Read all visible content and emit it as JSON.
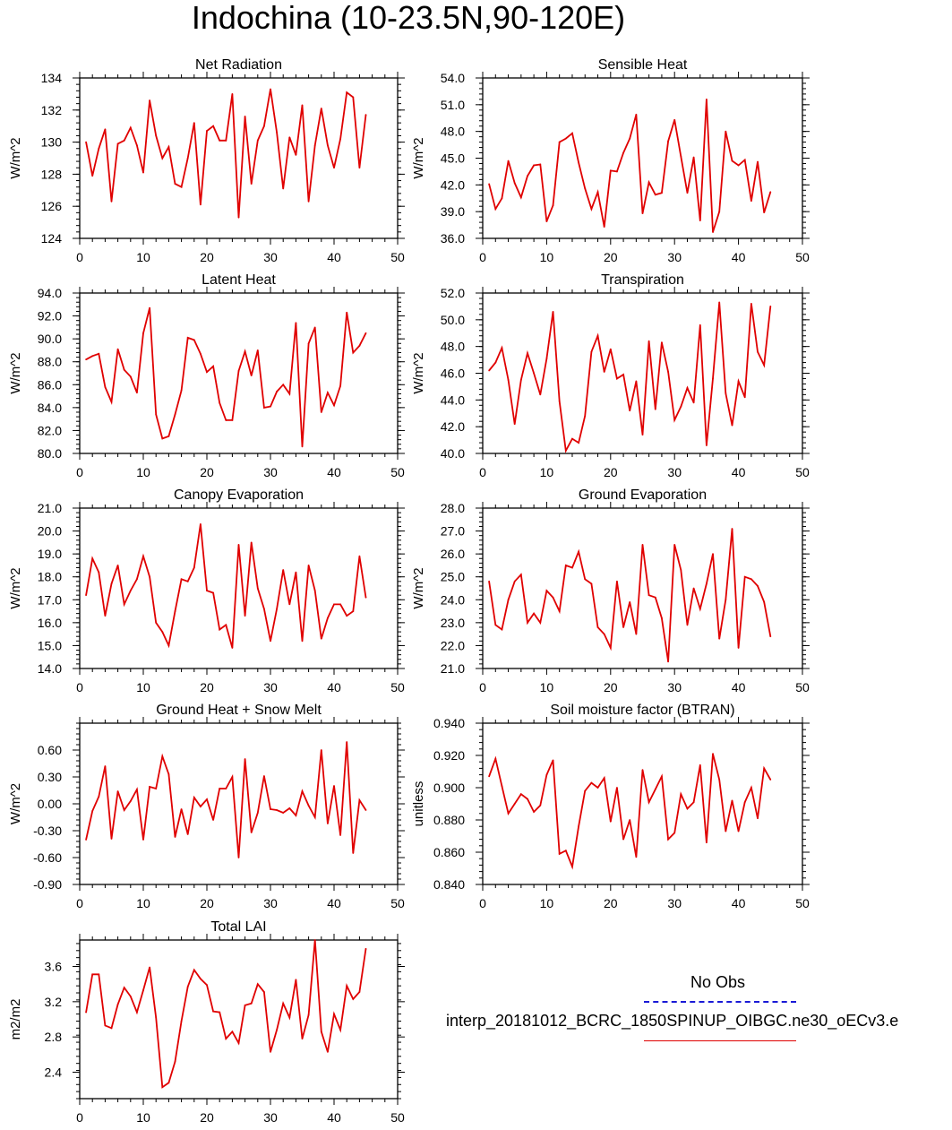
{
  "title": "Indochina (10-23.5N,90-120E)",
  "legend": {
    "obs_label": "No Obs",
    "model_label": "interp_20181012_BCRC_1850SPINUP_OIBGC.ne30_oECv3.e",
    "obs_color": "#1a1ad6",
    "model_color": "#e00000"
  },
  "chart_data": [
    {
      "type": "line",
      "title": "Net Radiation",
      "ylabel": "W/m^2",
      "xlim": [
        0,
        50
      ],
      "ylim": [
        124,
        134
      ],
      "xticks": [
        0,
        10,
        20,
        30,
        40,
        50
      ],
      "yticks": [
        "124",
        "126",
        "128",
        "130",
        "132",
        "134"
      ],
      "x": [
        1,
        2,
        3,
        4,
        5,
        6,
        7,
        8,
        9,
        10,
        11,
        12,
        13,
        14,
        15,
        16,
        17,
        18,
        19,
        20,
        21,
        22,
        23,
        24,
        25,
        26,
        27,
        28,
        29,
        30,
        31,
        32,
        33,
        34,
        35,
        36,
        37,
        38,
        39,
        40,
        41,
        42,
        43,
        44,
        45
      ],
      "series": [
        {
          "color": "#e00000",
          "values": [
            130.0,
            127.9,
            129.6,
            130.8,
            126.3,
            129.9,
            130.1,
            130.9,
            129.8,
            128.1,
            132.6,
            130.4,
            129.0,
            129.7,
            127.4,
            127.2,
            129.0,
            131.2,
            126.1,
            130.7,
            131.0,
            130.1,
            130.1,
            133.0,
            125.3,
            131.6,
            127.4,
            130.1,
            131.0,
            133.3,
            130.6,
            127.1,
            130.3,
            129.2,
            132.3,
            126.3,
            129.8,
            132.1,
            129.8,
            128.4,
            130.2,
            133.1,
            132.8,
            128.4,
            131.7
          ]
        }
      ]
    },
    {
      "type": "line",
      "title": "Sensible Heat",
      "ylabel": "W/m^2",
      "xlim": [
        0,
        50
      ],
      "ylim": [
        36,
        54
      ],
      "xticks": [
        0,
        10,
        20,
        30,
        40,
        50
      ],
      "yticks": [
        "36.0",
        "39.0",
        "42.0",
        "45.0",
        "48.0",
        "51.0",
        "54.0"
      ],
      "x": [
        1,
        2,
        3,
        4,
        5,
        6,
        7,
        8,
        9,
        10,
        11,
        12,
        13,
        14,
        15,
        16,
        17,
        18,
        19,
        20,
        21,
        22,
        23,
        24,
        25,
        26,
        27,
        28,
        29,
        30,
        31,
        32,
        33,
        34,
        35,
        36,
        37,
        38,
        39,
        40,
        41,
        42,
        43,
        44,
        45
      ],
      "series": [
        {
          "color": "#e00000",
          "values": [
            42.1,
            39.3,
            40.5,
            44.7,
            42.2,
            40.6,
            43.0,
            44.2,
            44.3,
            37.9,
            39.7,
            46.8,
            47.2,
            47.8,
            44.5,
            41.6,
            39.3,
            41.2,
            37.3,
            43.6,
            43.5,
            45.6,
            47.2,
            49.9,
            38.8,
            42.3,
            40.9,
            41.1,
            46.9,
            49.3,
            45.2,
            41.1,
            45.1,
            38.0,
            51.6,
            36.7,
            39.0,
            48.0,
            44.7,
            44.2,
            44.8,
            40.2,
            44.6,
            38.9,
            41.2
          ]
        }
      ]
    },
    {
      "type": "line",
      "title": "Latent Heat",
      "ylabel": "W/m^2",
      "xlim": [
        0,
        50
      ],
      "ylim": [
        80,
        94
      ],
      "xticks": [
        0,
        10,
        20,
        30,
        40,
        50
      ],
      "yticks": [
        "80.0",
        "82.0",
        "84.0",
        "86.0",
        "88.0",
        "90.0",
        "92.0",
        "94.0"
      ],
      "x": [
        1,
        2,
        3,
        4,
        5,
        6,
        7,
        8,
        9,
        10,
        11,
        12,
        13,
        14,
        15,
        16,
        17,
        18,
        19,
        20,
        21,
        22,
        23,
        24,
        25,
        26,
        27,
        28,
        29,
        30,
        31,
        32,
        33,
        34,
        35,
        36,
        37,
        38,
        39,
        40,
        41,
        42,
        43,
        44,
        45
      ],
      "series": [
        {
          "color": "#e00000",
          "values": [
            88.2,
            88.5,
            88.7,
            85.8,
            84.5,
            89.1,
            87.3,
            86.7,
            85.3,
            90.5,
            92.7,
            83.4,
            81.3,
            81.5,
            83.4,
            85.5,
            90.1,
            89.9,
            88.7,
            87.1,
            87.6,
            84.4,
            82.9,
            82.9,
            87.2,
            88.9,
            86.8,
            89.0,
            84.0,
            84.1,
            85.4,
            86.0,
            85.2,
            91.4,
            80.6,
            89.6,
            91.0,
            83.6,
            85.3,
            84.2,
            85.9,
            92.3,
            88.8,
            89.4,
            90.5
          ]
        }
      ]
    },
    {
      "type": "line",
      "title": "Transpiration",
      "ylabel": "W/m^2",
      "xlim": [
        0,
        50
      ],
      "ylim": [
        40,
        52
      ],
      "xticks": [
        0,
        10,
        20,
        30,
        40,
        50
      ],
      "yticks": [
        "40.0",
        "42.0",
        "44.0",
        "46.0",
        "48.0",
        "50.0",
        "52.0"
      ],
      "x": [
        1,
        2,
        3,
        4,
        5,
        6,
        7,
        8,
        9,
        10,
        11,
        12,
        13,
        14,
        15,
        16,
        17,
        18,
        19,
        20,
        21,
        22,
        23,
        24,
        25,
        26,
        27,
        28,
        29,
        30,
        31,
        32,
        33,
        34,
        35,
        36,
        37,
        38,
        39,
        40,
        41,
        42,
        43,
        44,
        45
      ],
      "series": [
        {
          "color": "#e00000",
          "values": [
            46.2,
            46.8,
            47.9,
            45.5,
            42.2,
            45.5,
            47.5,
            46.0,
            44.4,
            47.1,
            50.6,
            43.9,
            40.2,
            41.1,
            40.8,
            42.8,
            47.6,
            48.8,
            46.1,
            47.8,
            45.6,
            45.9,
            43.2,
            45.4,
            41.4,
            48.4,
            43.3,
            48.3,
            46.1,
            42.5,
            43.5,
            44.9,
            43.8,
            49.6,
            40.6,
            45.6,
            51.3,
            44.5,
            42.1,
            45.4,
            44.2,
            51.2,
            47.6,
            46.6,
            51.0
          ]
        }
      ]
    },
    {
      "type": "line",
      "title": "Canopy Evaporation",
      "ylabel": "W/m^2",
      "xlim": [
        0,
        50
      ],
      "ylim": [
        14,
        21
      ],
      "xticks": [
        0,
        10,
        20,
        30,
        40,
        50
      ],
      "yticks": [
        "14.0",
        "15.0",
        "16.0",
        "17.0",
        "18.0",
        "19.0",
        "20.0",
        "21.0"
      ],
      "x": [
        1,
        2,
        3,
        4,
        5,
        6,
        7,
        8,
        9,
        10,
        11,
        12,
        13,
        14,
        15,
        16,
        17,
        18,
        19,
        20,
        21,
        22,
        23,
        24,
        25,
        26,
        27,
        28,
        29,
        30,
        31,
        32,
        33,
        34,
        35,
        36,
        37,
        38,
        39,
        40,
        41,
        42,
        43,
        44,
        45
      ],
      "series": [
        {
          "color": "#e00000",
          "values": [
            17.2,
            18.8,
            18.2,
            16.3,
            17.7,
            18.5,
            16.8,
            17.4,
            17.9,
            18.9,
            18.0,
            16.0,
            15.6,
            15.0,
            16.5,
            17.9,
            17.8,
            18.4,
            20.3,
            17.4,
            17.3,
            15.7,
            15.9,
            14.9,
            19.4,
            16.3,
            19.5,
            17.5,
            16.6,
            15.2,
            16.6,
            18.3,
            16.8,
            18.2,
            15.2,
            18.5,
            17.4,
            15.3,
            16.2,
            16.8,
            16.8,
            16.3,
            16.5,
            18.9,
            17.1
          ]
        }
      ]
    },
    {
      "type": "line",
      "title": "Ground Evaporation",
      "ylabel": "W/m^2",
      "xlim": [
        0,
        50
      ],
      "ylim": [
        21,
        28
      ],
      "xticks": [
        0,
        10,
        20,
        30,
        40,
        50
      ],
      "yticks": [
        "21.0",
        "22.0",
        "23.0",
        "24.0",
        "25.0",
        "26.0",
        "27.0",
        "28.0"
      ],
      "x": [
        1,
        2,
        3,
        4,
        5,
        6,
        7,
        8,
        9,
        10,
        11,
        12,
        13,
        14,
        15,
        16,
        17,
        18,
        19,
        20,
        21,
        22,
        23,
        24,
        25,
        26,
        27,
        28,
        29,
        30,
        31,
        32,
        33,
        34,
        35,
        36,
        37,
        38,
        39,
        40,
        41,
        42,
        43,
        44,
        45
      ],
      "series": [
        {
          "color": "#e00000",
          "values": [
            24.8,
            22.9,
            22.7,
            24.0,
            24.8,
            25.1,
            23.0,
            23.4,
            23.0,
            24.4,
            24.1,
            23.5,
            25.5,
            25.4,
            26.1,
            24.9,
            24.7,
            22.8,
            22.5,
            21.9,
            24.8,
            22.8,
            23.9,
            22.5,
            26.4,
            24.2,
            24.1,
            23.2,
            21.3,
            26.4,
            25.3,
            22.9,
            24.5,
            23.6,
            24.7,
            26.0,
            22.3,
            24.0,
            27.1,
            21.9,
            25.0,
            24.9,
            24.6,
            23.9,
            22.4
          ]
        }
      ]
    },
    {
      "type": "line",
      "title": "Ground Heat + Snow Melt",
      "ylabel": "W/m^2",
      "xlim": [
        0,
        50
      ],
      "ylim": [
        -0.9,
        0.9
      ],
      "xticks": [
        0,
        10,
        20,
        30,
        40,
        50
      ],
      "yticks": [
        "-0.90",
        "-0.60",
        "-0.30",
        "0.00",
        "0.30",
        "0.60"
      ],
      "x": [
        1,
        2,
        3,
        4,
        5,
        6,
        7,
        8,
        9,
        10,
        11,
        12,
        13,
        14,
        15,
        16,
        17,
        18,
        19,
        20,
        21,
        22,
        23,
        24,
        25,
        26,
        27,
        28,
        29,
        30,
        31,
        32,
        33,
        34,
        35,
        36,
        37,
        38,
        39,
        40,
        41,
        42,
        43,
        44,
        45
      ],
      "series": [
        {
          "color": "#e00000",
          "values": [
            -0.4,
            -0.08,
            0.08,
            0.42,
            -0.39,
            0.14,
            -0.07,
            0.03,
            0.16,
            -0.4,
            0.19,
            0.17,
            0.53,
            0.33,
            -0.37,
            -0.06,
            -0.34,
            0.07,
            -0.03,
            0.05,
            -0.18,
            0.17,
            0.17,
            0.3,
            -0.6,
            0.5,
            -0.32,
            -0.1,
            0.31,
            -0.06,
            -0.07,
            -0.1,
            -0.05,
            -0.13,
            0.14,
            -0.02,
            -0.15,
            0.6,
            -0.22,
            0.2,
            -0.35,
            0.69,
            -0.55,
            0.04,
            -0.07
          ]
        }
      ]
    },
    {
      "type": "line",
      "title": "Soil moisture factor (BTRAN)",
      "ylabel": "unitless",
      "xlim": [
        0,
        50
      ],
      "ylim": [
        0.84,
        0.94
      ],
      "xticks": [
        0,
        10,
        20,
        30,
        40,
        50
      ],
      "yticks": [
        "0.840",
        "0.860",
        "0.880",
        "0.900",
        "0.920",
        "0.940"
      ],
      "x": [
        1,
        2,
        3,
        4,
        5,
        6,
        7,
        8,
        9,
        10,
        11,
        12,
        13,
        14,
        15,
        16,
        17,
        18,
        19,
        20,
        21,
        22,
        23,
        24,
        25,
        26,
        27,
        28,
        29,
        30,
        31,
        32,
        33,
        34,
        35,
        36,
        37,
        38,
        39,
        40,
        41,
        42,
        43,
        44,
        45
      ],
      "series": [
        {
          "color": "#e00000",
          "values": [
            0.907,
            0.918,
            0.901,
            0.884,
            0.89,
            0.896,
            0.893,
            0.885,
            0.889,
            0.908,
            0.917,
            0.859,
            0.861,
            0.851,
            0.876,
            0.898,
            0.903,
            0.9,
            0.906,
            0.879,
            0.9,
            0.868,
            0.88,
            0.857,
            0.911,
            0.891,
            0.899,
            0.907,
            0.868,
            0.872,
            0.896,
            0.887,
            0.891,
            0.914,
            0.866,
            0.921,
            0.905,
            0.873,
            0.892,
            0.873,
            0.891,
            0.9,
            0.881,
            0.912,
            0.905
          ]
        }
      ]
    },
    {
      "type": "line",
      "title": "Total LAI",
      "ylabel": "m2/m2",
      "xlim": [
        0,
        50
      ],
      "ylim": [
        2.1,
        3.9
      ],
      "xticks": [
        0,
        10,
        20,
        30,
        40,
        50
      ],
      "yticks": [
        "2.4",
        "2.8",
        "3.2",
        "3.6"
      ],
      "ytick_values": [
        2.4,
        2.8,
        3.2,
        3.6
      ],
      "x": [
        1,
        2,
        3,
        4,
        5,
        6,
        7,
        8,
        9,
        10,
        11,
        12,
        13,
        14,
        15,
        16,
        17,
        18,
        19,
        20,
        21,
        22,
        23,
        24,
        25,
        26,
        27,
        28,
        29,
        30,
        31,
        32,
        33,
        34,
        35,
        36,
        37,
        38,
        39,
        40,
        41,
        42,
        43,
        44,
        45
      ],
      "series": [
        {
          "color": "#e00000",
          "values": [
            3.08,
            3.51,
            3.51,
            2.93,
            2.9,
            3.17,
            3.36,
            3.26,
            3.08,
            3.33,
            3.59,
            3.02,
            2.23,
            2.28,
            2.52,
            2.98,
            3.37,
            3.56,
            3.46,
            3.39,
            3.09,
            3.08,
            2.78,
            2.86,
            2.73,
            3.16,
            3.18,
            3.4,
            3.31,
            2.63,
            2.88,
            3.18,
            3.02,
            3.45,
            2.78,
            3.05,
            3.9,
            2.86,
            2.63,
            3.06,
            2.88,
            3.38,
            3.23,
            3.31,
            3.8
          ]
        }
      ]
    }
  ]
}
